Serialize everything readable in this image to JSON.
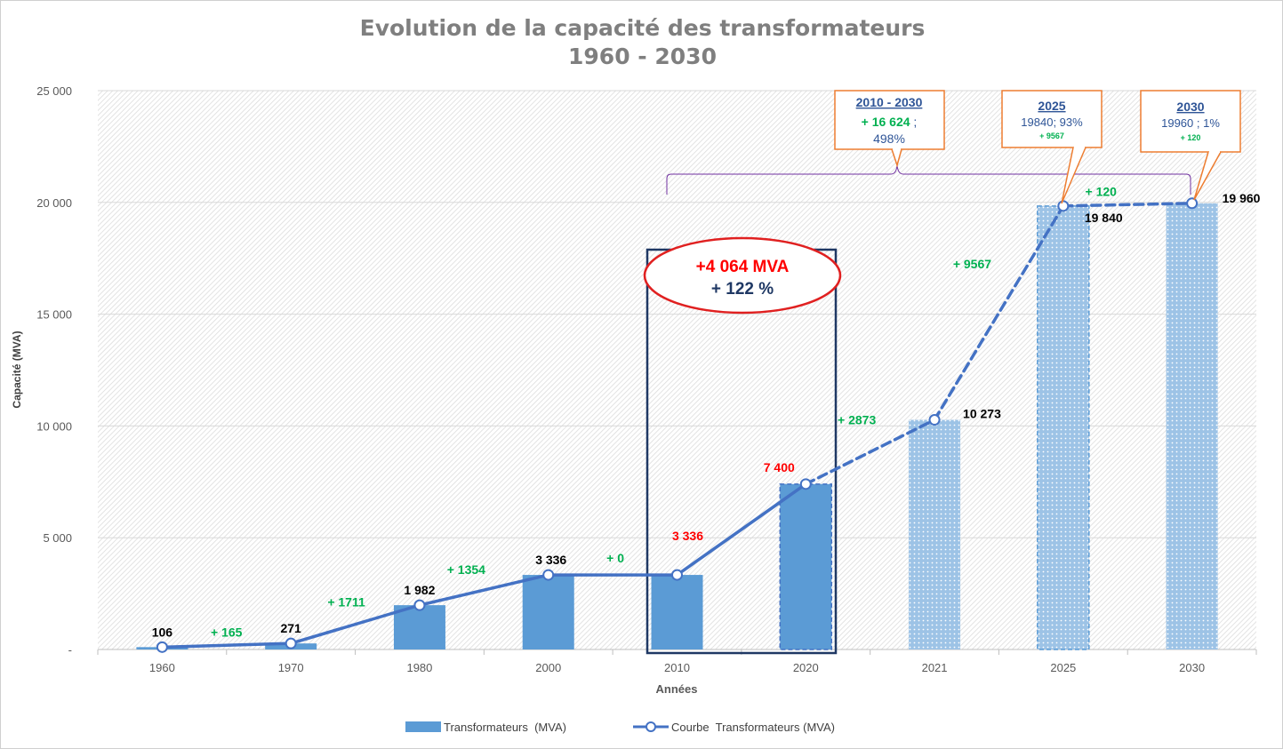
{
  "chart_data": {
    "type": "bar",
    "title_line1": "Evolution de la capacité des transformateurs",
    "title_line2": "1960 - 2030",
    "xlabel": "Années",
    "ylabel": "Capacité (MVA)",
    "ylim": [
      0,
      25000
    ],
    "y_ticks": [
      {
        "value": 0,
        "label": "-"
      },
      {
        "value": 5000,
        "label": "5 000"
      },
      {
        "value": 10000,
        "label": "10 000"
      },
      {
        "value": 15000,
        "label": "15 000"
      },
      {
        "value": 20000,
        "label": "20 000"
      },
      {
        "value": 25000,
        "label": "25 000"
      }
    ],
    "categories": [
      "1960",
      "1970",
      "1980",
      "2000",
      "2010",
      "2020",
      "2021",
      "2025",
      "2030"
    ],
    "series": [
      {
        "name": "Transformateurs  (MVA)",
        "type": "bar",
        "values": [
          106,
          271,
          1982,
          3336,
          3336,
          7400,
          10273,
          19840,
          19960
        ]
      },
      {
        "name": "Courbe  Transformateurs (MVA)",
        "type": "line",
        "values": [
          106,
          271,
          1982,
          3336,
          3336,
          7400,
          10273,
          19840,
          19960
        ]
      }
    ],
    "bar_styles": [
      "solid",
      "solid",
      "solid",
      "solid",
      "solid",
      "solid-dashed",
      "dotted-light",
      "dotted-light-dashed",
      "dotted-light"
    ],
    "line_styles": [
      "solid",
      "solid",
      "solid",
      "solid",
      "solid",
      "dashed",
      "dashed",
      "dashed"
    ],
    "value_labels": [
      {
        "text": "106",
        "color": "#000000"
      },
      {
        "text": "271",
        "color": "#000000"
      },
      {
        "text": "1 982",
        "color": "#000000"
      },
      {
        "text": "3 336",
        "color": "#000000"
      },
      {
        "text": "3 336",
        "color": "#ff0000"
      },
      {
        "text": "7 400",
        "color": "#ff0000"
      },
      {
        "text": "10 273",
        "color": "#000000"
      },
      {
        "text": "19 840",
        "color": "#000000"
      },
      {
        "text": "19 960",
        "color": "#000000"
      }
    ],
    "delta_labels": [
      "+ 165",
      "+ 1711",
      "+ 1354",
      "+ 0",
      "",
      "+ 2873",
      "+ 9567",
      "+ 120"
    ],
    "highlight": {
      "line1": "+4 064 MVA",
      "line2": "+ 122 %"
    },
    "callouts": [
      {
        "title": "2010 - 2030",
        "line1_green": "+ 16 624",
        "line1_rest": " ;",
        "line2": "498%"
      },
      {
        "title": "2025",
        "line1": "19840; 93%",
        "line2": "+ 9567"
      },
      {
        "title": "2030",
        "line1": "19960 ; 1%",
        "line2": "+ 120"
      }
    ],
    "legend_position": "bottom",
    "grid": true
  },
  "colors": {
    "bar": "#5b9bd5",
    "bar_light": "#9dc3e6",
    "line": "#4472c4",
    "delta": "#00b050",
    "highlight_red": "#ff0000",
    "highlight_navy": "#1f3864",
    "callout_border": "#ed7d31",
    "callout_text": "#2f5597",
    "bracket": "#7030a0",
    "axis_text": "#595959",
    "title": "#7f7f7f"
  }
}
